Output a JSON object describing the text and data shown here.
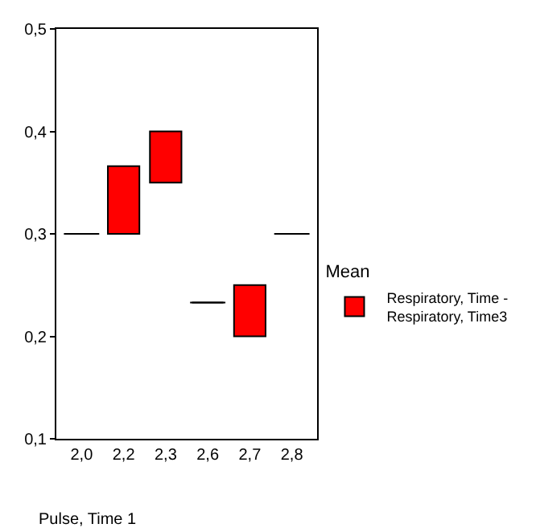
{
  "chart_data": {
    "type": "bar",
    "categories": [
      "2,0",
      "2,2",
      "2,3",
      "2,6",
      "2,7",
      "2,8"
    ],
    "series": [
      {
        "name": "Respiratory, Time -\nRespiratory, Time3",
        "color": "#ff0000",
        "colors": [
          "#000000",
          "#ff0000",
          "#ff0000",
          "#000000",
          "#ff0000",
          "#000000"
        ],
        "base": [
          0.3,
          0.3,
          0.35,
          0.233,
          0.2,
          0.3
        ],
        "values": [
          0,
          0.066,
          0.05,
          0,
          0.05,
          0
        ]
      }
    ],
    "ylim": [
      0.1,
      0.5
    ],
    "yticks": [
      {
        "value": 0.1,
        "label": "0,1"
      },
      {
        "value": 0.2,
        "label": "0,2"
      },
      {
        "value": 0.3,
        "label": "0,3"
      },
      {
        "value": 0.4,
        "label": "0,4"
      },
      {
        "value": 0.5,
        "label": "0,5"
      }
    ],
    "xlabel": "Pulse, Time 1",
    "legend_title": "Mean",
    "legend": "right",
    "grid": false
  }
}
